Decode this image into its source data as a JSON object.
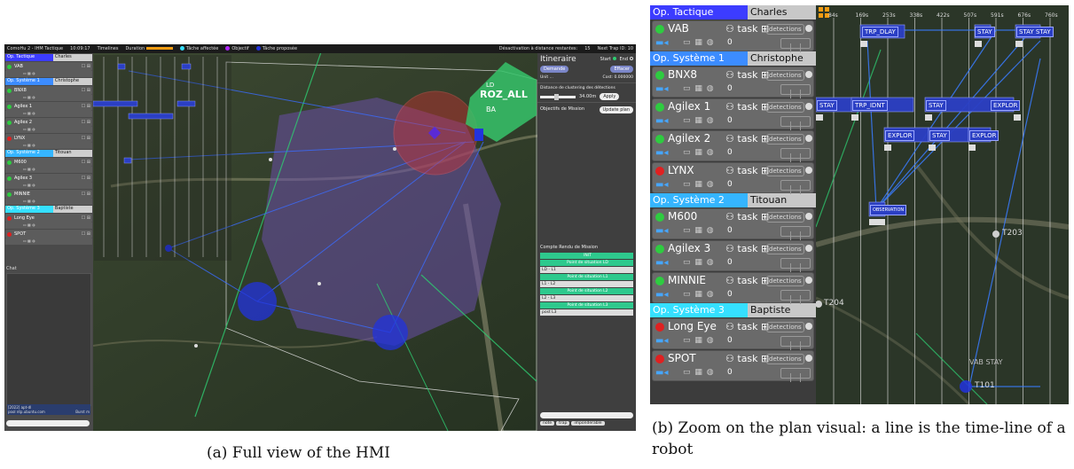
{
  "fig_a": {
    "topbar": {
      "app_title": "ComoHu 2 - IHM Tactique",
      "clock": "10:09:17",
      "timelines_label": "Timelines",
      "duration_label": "Duration",
      "legend_assigned": "Tâche affectée",
      "legend_objective": "Objectif",
      "legend_proposed": "Tâche proposée",
      "deactivation_label": "Désactivation à distance restantes:",
      "deactivation_value": "15",
      "next_trap": "Next Trap ID: 10"
    },
    "operators": [
      {
        "label": "Op. Tactique",
        "person": "Charles",
        "color": "#3c3cff",
        "robots": [
          {
            "name": "VAB",
            "status": "#2ecc40"
          }
        ]
      },
      {
        "label": "Op. Système 1",
        "person": "Christophe",
        "color": "#3c8cff",
        "robots": [
          {
            "name": "BNX8",
            "status": "#2ecc40"
          },
          {
            "name": "Agilex 1",
            "status": "#2ecc40"
          },
          {
            "name": "Agilex 2",
            "status": "#2ecc40"
          },
          {
            "name": "LYNX",
            "status": "#e02020"
          }
        ]
      },
      {
        "label": "Op. Système 2",
        "person": "Titouan",
        "color": "#35b5ff",
        "robots": [
          {
            "name": "M600",
            "status": "#2ecc40"
          },
          {
            "name": "Agilex 3",
            "status": "#2ecc40"
          },
          {
            "name": "MINNIE",
            "status": "#2ecc40"
          }
        ]
      },
      {
        "label": "Op. Système 3",
        "person": "Baptiste",
        "color": "#35e0ff",
        "robots": [
          {
            "name": "Long Eye",
            "status": "#e02020"
          },
          {
            "name": "SPOT",
            "status": "#e02020"
          }
        ]
      }
    ],
    "chat": {
      "label": "Chat",
      "message_line1": "[2022] apt-dl",
      "message_line2": "pool ntp.ubuntu.com",
      "message_right": "Burst m"
    },
    "map_labels": {
      "zone": "ROZ_ALL",
      "zone_ld": "LD",
      "zone_ba": "BA"
    },
    "right": {
      "title": "Itineraire",
      "start": "Start",
      "end": "End",
      "demande": "Demande",
      "effacer": "Effacer",
      "unit_label": "Unit",
      "unit_value": "...",
      "cost_label": "Cost:",
      "cost_value": "0.000000",
      "clustering_label": "Distance de clustering des détections",
      "clustering_value": "34.00m",
      "apply": "Apply",
      "objectives_label": "Objectifs de Mission",
      "update_plan": "Update plan",
      "report_title": "Compte Rendu de Mission",
      "report_rows": [
        {
          "text": "INIT",
          "kind": "g"
        },
        {
          "text": "Point de situation LD",
          "kind": "g"
        },
        {
          "text": "LD - L1",
          "kind": "w"
        },
        {
          "text": "Point de situation L1",
          "kind": "g"
        },
        {
          "text": "L1 - L2",
          "kind": "w"
        },
        {
          "text": "Point de situation L2",
          "kind": "g"
        },
        {
          "text": "L2 - L3",
          "kind": "w"
        },
        {
          "text": "Point de situation L3",
          "kind": "g"
        },
        {
          "text": "post L3",
          "kind": "w"
        }
      ],
      "tags": [
        "note",
        "trap",
        "imponderable"
      ]
    }
  },
  "fig_b": {
    "operators": [
      {
        "label": "Op. Tactique",
        "person": "Charles",
        "color": "#3c3cff",
        "robots": [
          {
            "name": "VAB",
            "status": "#2ecc40",
            "task": "task"
          }
        ]
      },
      {
        "label": "Op. Système 1",
        "person": "Christophe",
        "color": "#3c8cff",
        "robots": [
          {
            "name": "BNX8",
            "status": "#2ecc40",
            "task": "task"
          },
          {
            "name": "Agilex 1",
            "status": "#2ecc40",
            "task": "task"
          },
          {
            "name": "Agilex 2",
            "status": "#2ecc40",
            "task": "task"
          },
          {
            "name": "LYNX",
            "status": "#e02020",
            "task": "task"
          }
        ]
      },
      {
        "label": "Op. Système 2",
        "person": "Titouan",
        "color": "#35b5ff",
        "robots": [
          {
            "name": "M600",
            "status": "#2ecc40",
            "task": "task"
          },
          {
            "name": "Agilex 3",
            "status": "#2ecc40",
            "task": "task"
          },
          {
            "name": "MINNIE",
            "status": "#2ecc40",
            "task": "task"
          }
        ]
      },
      {
        "label": "Op. Système 3",
        "person": "Baptiste",
        "color": "#35e0ff",
        "robots": [
          {
            "name": "Long Eye",
            "status": "#e02020",
            "task": "task"
          },
          {
            "name": "SPOT",
            "status": "#e02020",
            "task": "task"
          }
        ]
      }
    ],
    "detections_label": "detections",
    "count_value": "0",
    "time_ticks": [
      "84s",
      "169s",
      "253s",
      "338s",
      "422s",
      "507s",
      "591s",
      "676s",
      "760s"
    ],
    "timeline_labels": {
      "trp_dlay": "TRP_DLAY",
      "stay1": "STAY",
      "stay_stay": "STAY STAY",
      "stay2": "STAY",
      "trp_idnt": "TRP_IDNT",
      "stay3": "STAY",
      "explor1": "EXPLOR",
      "explor2": "EXPLOR",
      "stay4": "STAY",
      "explor3": "EXPLOR",
      "obs": "OBSERVATION"
    },
    "map_labels": {
      "t203": "T203",
      "t204": "T204",
      "t101": "T101",
      "vab_stay": "VAB STAY"
    }
  },
  "captions": {
    "a": "(a) Full view of the HMI",
    "b": "(b) Zoom on the plan visual: a line is the time-line of a robot"
  }
}
